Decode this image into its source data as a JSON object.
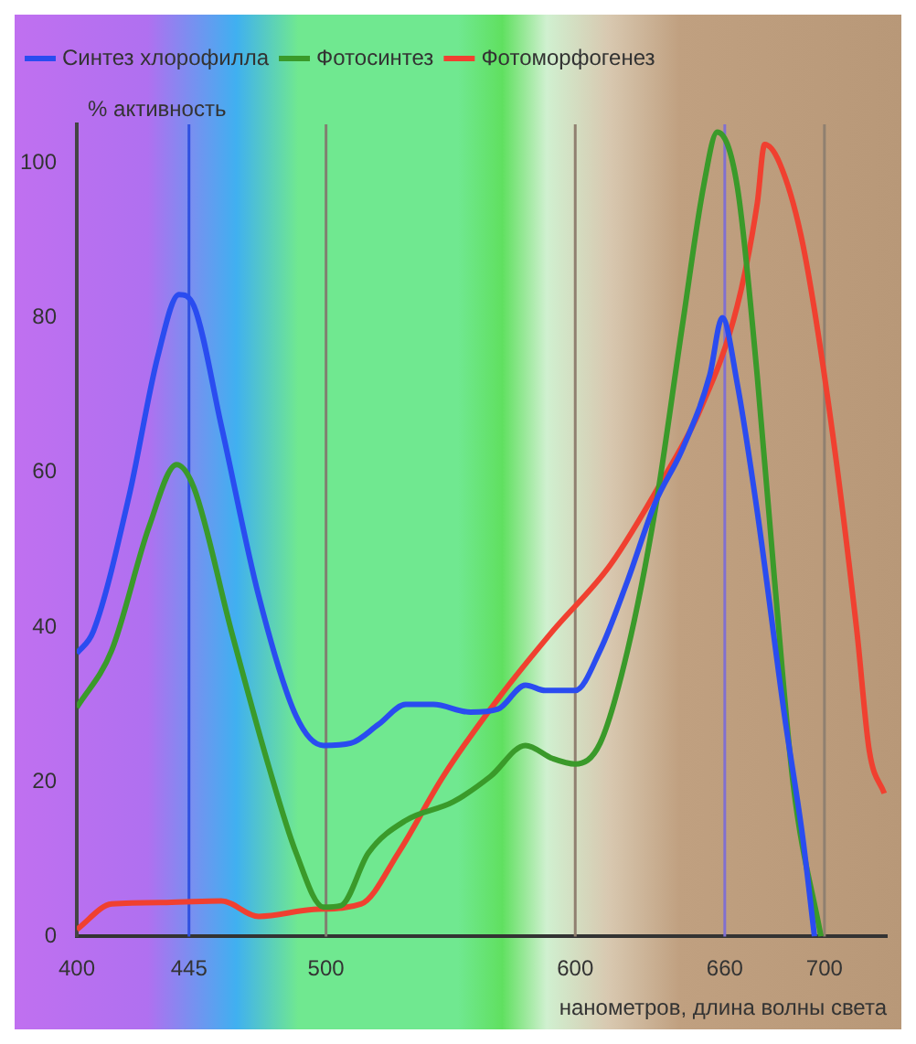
{
  "chart_data": {
    "type": "line",
    "xlabel": "нанометров, длина волны света",
    "ylabel": "% активность",
    "xlim": [
      400,
      725
    ],
    "xticks": [
      400,
      445,
      500,
      600,
      660,
      700
    ],
    "ylim": [
      0,
      105
    ],
    "yticks": [
      0,
      20,
      40,
      60,
      80,
      100
    ],
    "grid": false,
    "legend": "top left",
    "marker": "none",
    "line_style": "solid",
    "series": [
      {
        "name": "Синтез хлорофилла",
        "color": "#2a4cf0",
        "x": [
          400,
          406.7,
          421,
          432.5,
          441,
          447,
          458,
          473,
          488,
          499,
          510,
          521,
          532,
          543,
          558,
          569,
          580,
          588,
          600,
          610,
          621,
          632,
          643,
          654,
          659,
          665,
          673,
          684,
          691.2,
          696
        ],
        "values": [
          36.6,
          39.5,
          57,
          75,
          83,
          81.5,
          66,
          44,
          28.5,
          24.7,
          25,
          27.4,
          30,
          30,
          29,
          29.4,
          32.5,
          31.8,
          31.8,
          37,
          46,
          56,
          63,
          72.6,
          80,
          71.5,
          55,
          28.5,
          13,
          0
        ]
      },
      {
        "name": "Фотосинтез",
        "color": "#3a9a2a",
        "x": [
          400,
          414,
          429,
          440,
          447,
          462,
          477,
          488,
          499,
          506,
          517,
          532,
          551,
          566,
          580,
          591,
          600,
          610,
          621,
          632,
          643,
          651.5,
          657,
          665,
          673,
          680,
          687.5,
          698.6
        ],
        "values": [
          29.6,
          37,
          53,
          61,
          58,
          39.5,
          22,
          10.8,
          3.8,
          4,
          10.8,
          15,
          17.4,
          20.7,
          24.7,
          23,
          22.3,
          25,
          37,
          55,
          79,
          97,
          104,
          97,
          72.6,
          46,
          19.6,
          0
        ]
      },
      {
        "name": "Фотоморфогенез",
        "color": "#f04030",
        "x": [
          400,
          414,
          436,
          458,
          473,
          495,
          514,
          529,
          547,
          569,
          591,
          614,
          635,
          650,
          665,
          673,
          676,
          682,
          691,
          702,
          713,
          718,
          724
        ],
        "values": [
          0.9,
          4.2,
          4.4,
          4.6,
          2.6,
          3.5,
          4.2,
          10.8,
          20.7,
          30.7,
          39.5,
          48,
          59,
          68,
          81.5,
          94.7,
          102.4,
          100,
          90,
          68,
          39.5,
          24,
          18.5
        ]
      }
    ],
    "ref_lines": [
      {
        "axis": "x",
        "value": 445,
        "color": "#3050e0"
      },
      {
        "axis": "x",
        "value": 500,
        "color": "#808070"
      },
      {
        "axis": "x",
        "value": 600,
        "color": "#908070"
      },
      {
        "axis": "x",
        "value": 660,
        "color": "#8070d0"
      },
      {
        "axis": "x",
        "value": 700,
        "color": "#908070"
      }
    ]
  }
}
